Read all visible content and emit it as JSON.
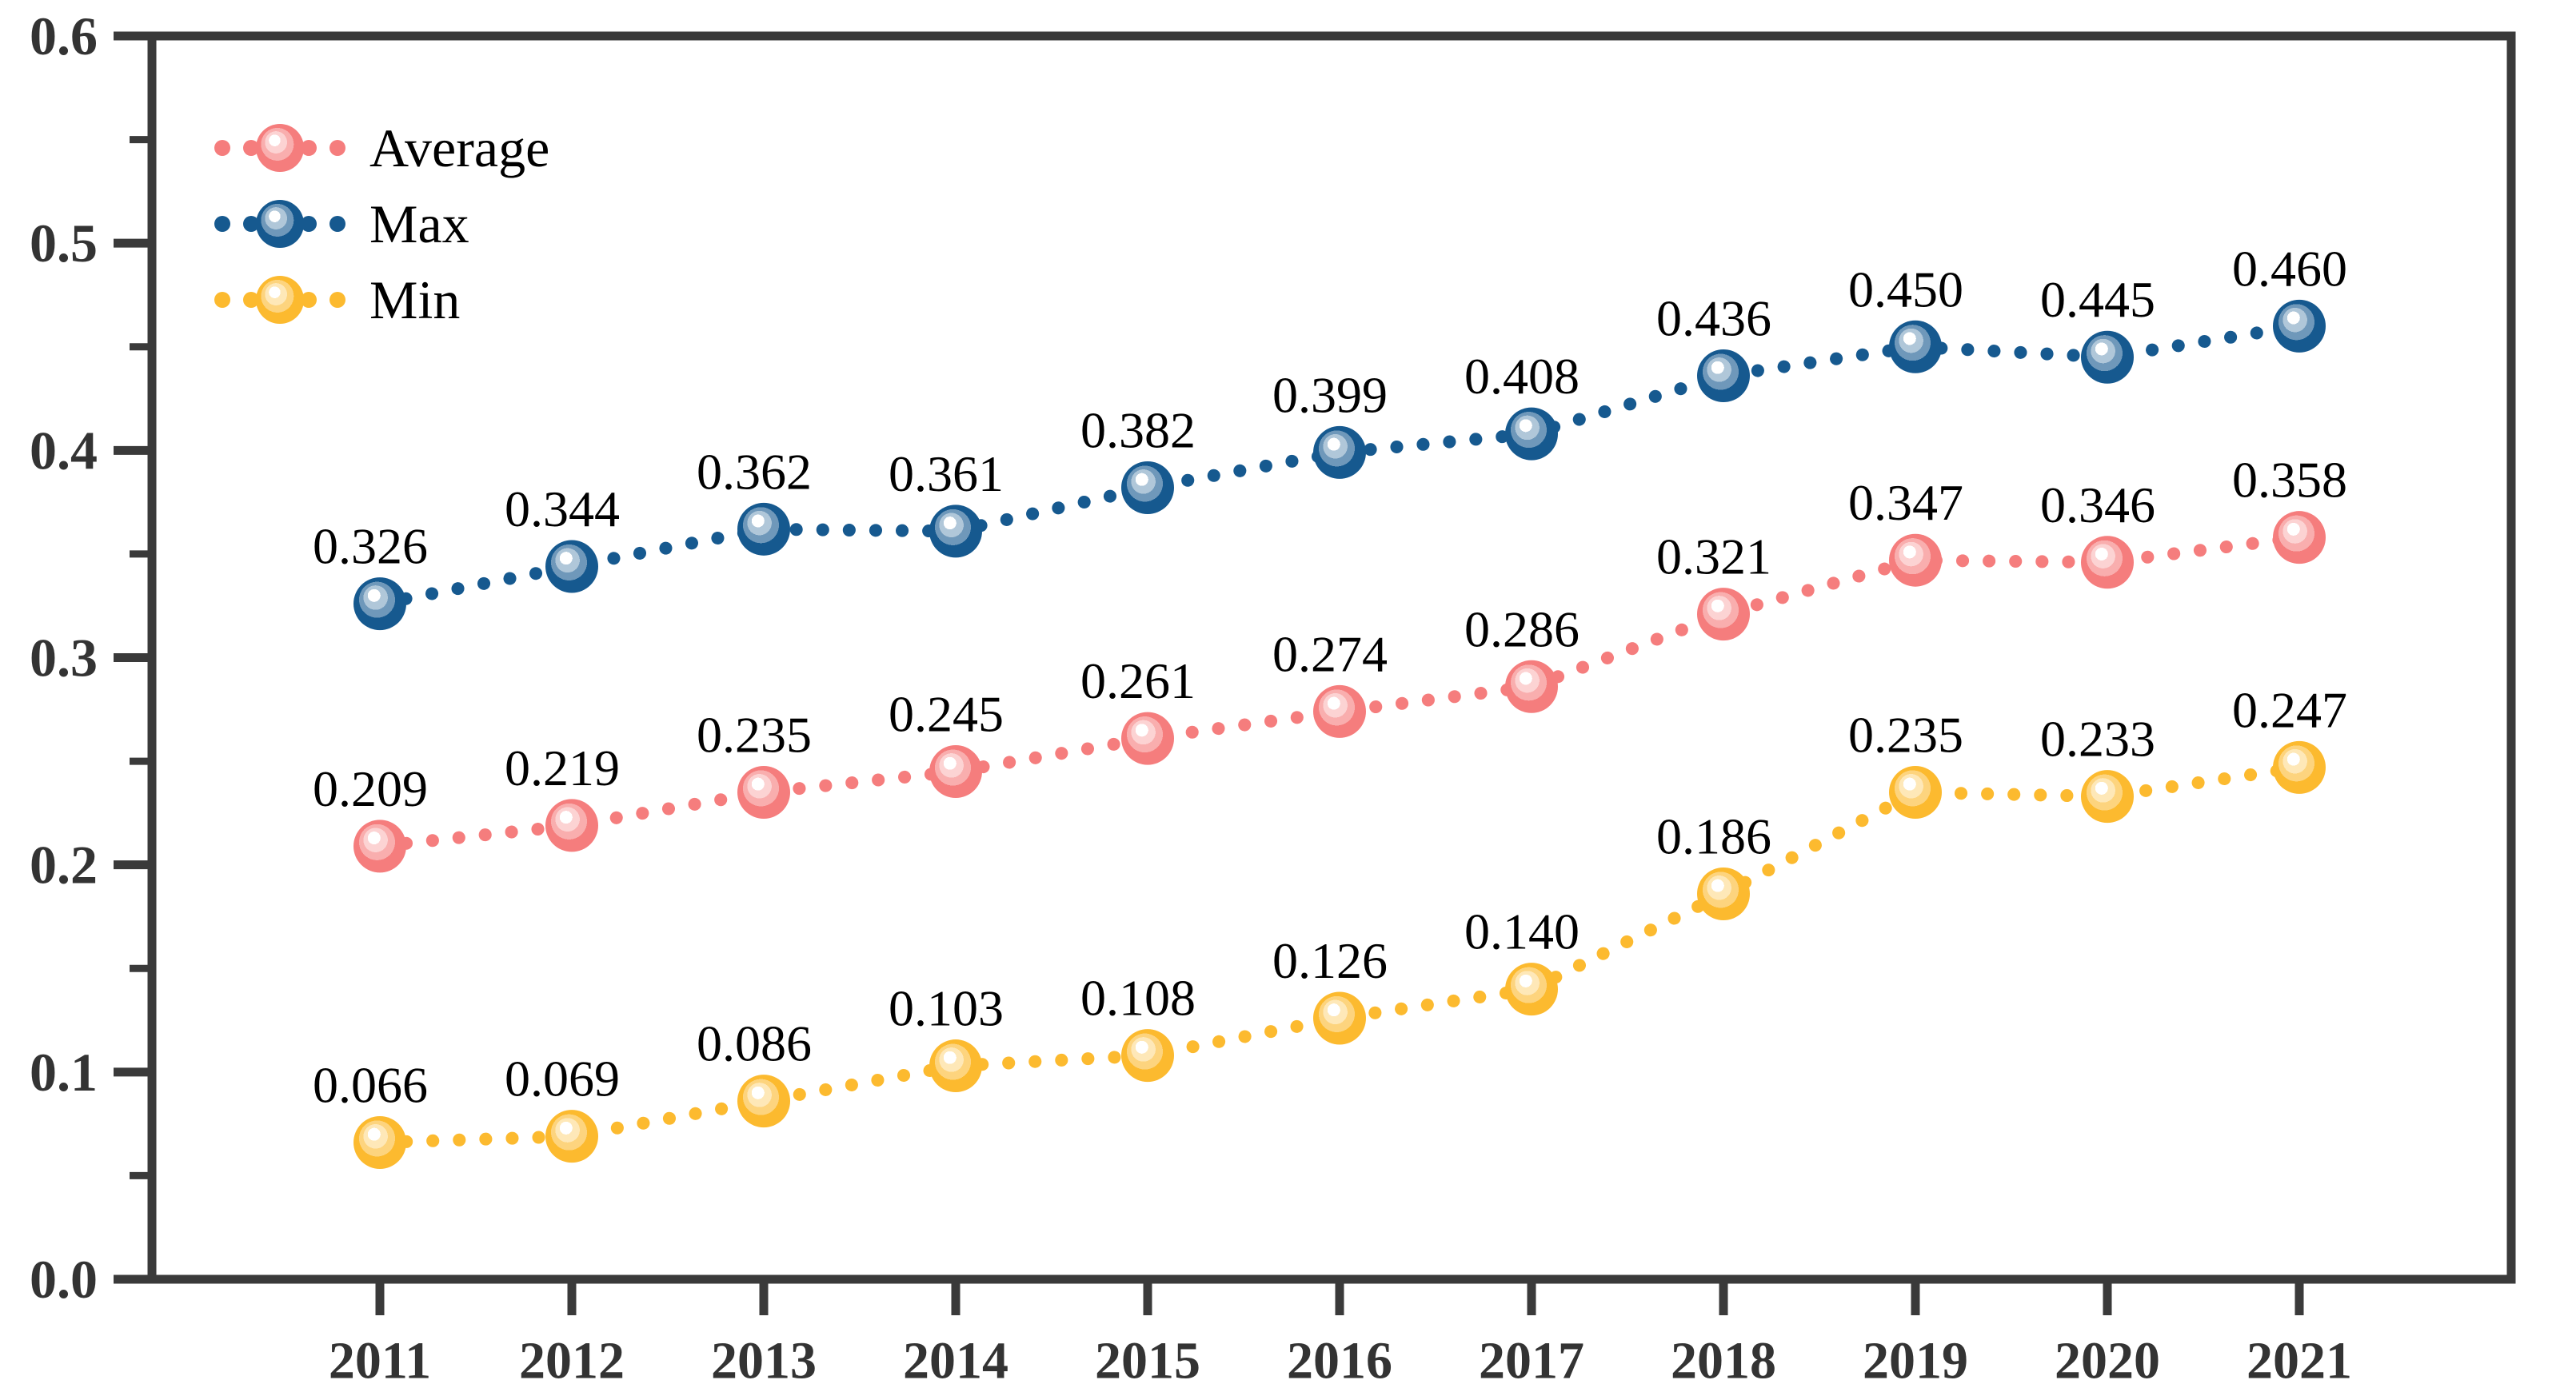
{
  "figure": {
    "background": "#ffffff",
    "axis_color": "#3a3a3a",
    "tick_label_color": "#333333",
    "value_label_color": "#000000"
  },
  "chart_data": {
    "type": "line",
    "title": "",
    "xlabel": "",
    "ylabel": "",
    "line_style": "dotted",
    "marker_style": "glossy-sphere",
    "grid": false,
    "value_labels_shown": true,
    "value_label_decimals": 3,
    "categories": [
      "2011",
      "2012",
      "2013",
      "2014",
      "2015",
      "2016",
      "2017",
      "2018",
      "2019",
      "2020",
      "2021"
    ],
    "series": [
      {
        "name": "Average",
        "color": "#F57D7D",
        "values": [
          0.209,
          0.219,
          0.235,
          0.245,
          0.261,
          0.274,
          0.286,
          0.321,
          0.347,
          0.346,
          0.358
        ]
      },
      {
        "name": "Max",
        "color": "#16598F",
        "values": [
          0.326,
          0.344,
          0.362,
          0.361,
          0.382,
          0.399,
          0.408,
          0.436,
          0.45,
          0.445,
          0.46
        ]
      },
      {
        "name": "Min",
        "color": "#FCBA2F",
        "values": [
          0.066,
          0.069,
          0.086,
          0.103,
          0.108,
          0.126,
          0.14,
          0.186,
          0.235,
          0.233,
          0.247
        ]
      }
    ],
    "y_axis": {
      "min": 0.0,
      "max": 0.6,
      "major_tick_step": 0.1,
      "minor_tick_step": 0.05,
      "tick_labels": [
        "0.0",
        "0.1",
        "0.2",
        "0.3",
        "0.4",
        "0.5",
        "0.6"
      ]
    },
    "legend": {
      "position": "upper-left",
      "items": [
        "Average",
        "Max",
        "Min"
      ]
    }
  }
}
